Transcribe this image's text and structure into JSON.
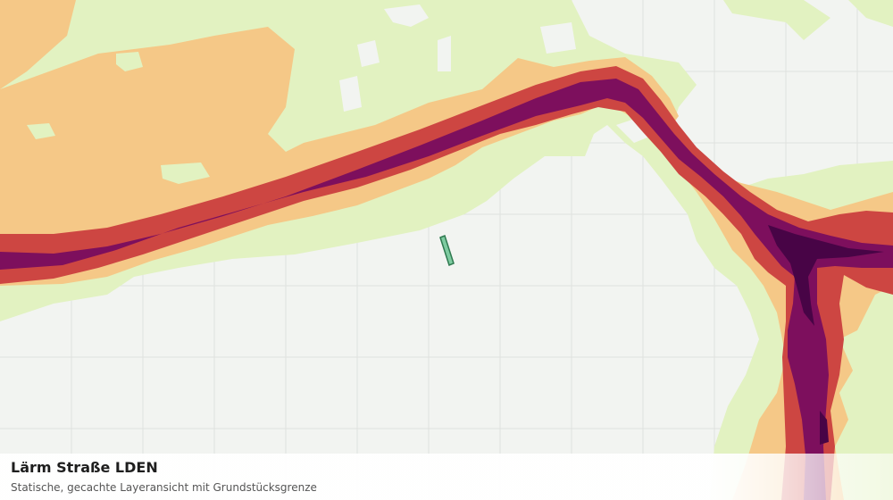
{
  "map": {
    "title": "Lärm Straße LDEN",
    "subtitle": "Statische, gecachte Layeransicht mit Grundstücksgrenze",
    "colors": {
      "background": "#f2f4f1",
      "grid": "#dfe2de",
      "band_light": "#e2f2c1",
      "band_orange": "#f5c887",
      "band_red": "#cd4642",
      "band_purple": "#7d0f5d",
      "band_dark": "#480446",
      "parcel_fill": "#7ecba0",
      "parcel_stroke": "#2f7a50"
    }
  }
}
